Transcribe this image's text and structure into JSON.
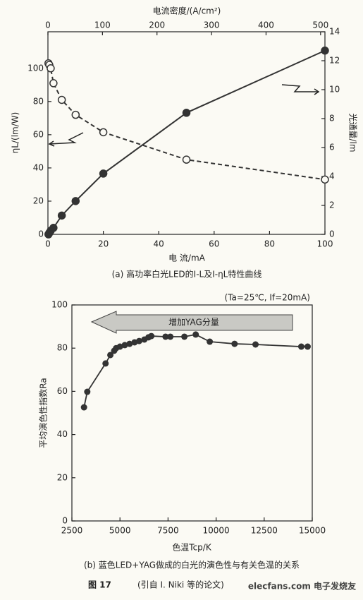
{
  "chart_data": [
    {
      "type": "line",
      "caption": "(a) 高功率白光LED的I-L及I-ηL特性曲线",
      "x_label": "电 流/mA",
      "x2_label": "电流密度/(A/cm²)",
      "y_label": "ηL/(lm/W)",
      "y2_label": "光通量/lm",
      "x": [
        0.2,
        0.5,
        1,
        2,
        5,
        10,
        20,
        50,
        100
      ],
      "xlim": [
        0,
        100
      ],
      "xticks": [
        0,
        20,
        40,
        60,
        80,
        100
      ],
      "x2lim": [
        0,
        508
      ],
      "x2ticks": [
        0,
        100,
        200,
        300,
        400,
        500
      ],
      "ylim": [
        0,
        122
      ],
      "yticks": [
        0,
        20,
        40,
        60,
        80,
        100
      ],
      "y2lim": [
        0,
        14
      ],
      "y2ticks": [
        0,
        2,
        4,
        6,
        8,
        10,
        12,
        14
      ],
      "series": [
        {
          "color": "#333333",
          "style": "dashed",
          "marker": "open",
          "values": [
            103,
            102,
            100,
            91,
            81,
            72,
            61.5,
            45,
            33
          ]
        },
        {
          "color": "#333333",
          "style": "solid",
          "marker": "filled",
          "axis": "y2",
          "values": [
            0,
            0.1,
            0.25,
            0.45,
            1.3,
            2.3,
            4.2,
            8.4,
            12.7
          ]
        }
      ]
    },
    {
      "type": "scatter",
      "caption": "(b) 蓝色LED+YAG做成的白光的演色性与有关色温的关系",
      "annotation": "(Ta=25℃, If=20mA)",
      "arrow_label": "增加YAG分量",
      "x_label": "色温Tcp/K",
      "y_label": "平均演色性指数Ra",
      "x": [
        3130,
        3300,
        4250,
        4500,
        4700,
        4800,
        5000,
        5250,
        5500,
        5760,
        6000,
        6270,
        6480,
        6630,
        7370,
        7620,
        8350,
        8940,
        9670,
        10960,
        12050,
        14430,
        14760
      ],
      "values": [
        52.6,
        59.8,
        72.9,
        76.8,
        78.8,
        80,
        80.7,
        81.4,
        82,
        82.7,
        83.3,
        84,
        85,
        85.6,
        85.3,
        85.3,
        85.3,
        86.3,
        83,
        82,
        81.7,
        80.7,
        80.7
      ],
      "color": "#333333",
      "fit_line": true,
      "xlim": [
        2500,
        15000
      ],
      "xticks": [
        2500,
        5000,
        7500,
        10000,
        12500,
        15000
      ],
      "ylim": [
        0,
        100
      ],
      "yticks": [
        0,
        20,
        40,
        60,
        80,
        100
      ]
    }
  ],
  "figure_label": "图 17",
  "figure_source": "(引自 I. Niki 等的论文)",
  "watermark": "elecfans.com 电子发烧友"
}
